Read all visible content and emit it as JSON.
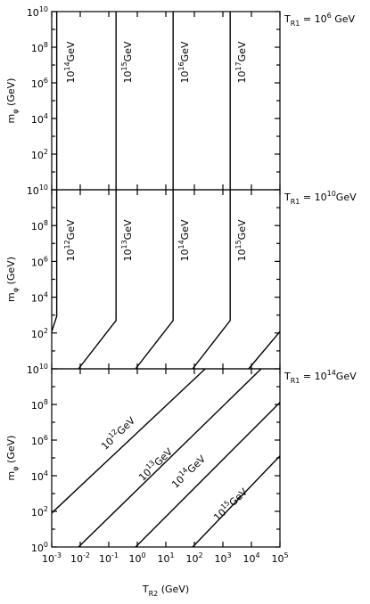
{
  "chart_data": [
    {
      "type": "line",
      "title": "T_{R1} = 10^{6} GeV",
      "ylabel": "m_{φ} (GeV)",
      "xscale": "log",
      "yscale": "log",
      "xlim": [
        0.001,
        100000
      ],
      "ylim": [
        1,
        10000000000
      ],
      "xtick_marks": [
        0.001,
        0.01,
        0.1,
        1,
        10,
        100,
        1000,
        10000,
        100000
      ],
      "yticks": [
        {
          "value": 100,
          "label": "10^{2}"
        },
        {
          "value": 10000,
          "label": "10^{4}"
        },
        {
          "value": 1000000,
          "label": "10^{6}"
        },
        {
          "value": 100000000,
          "label": "10^{8}"
        },
        {
          "value": 10000000000,
          "label": "10^{10}"
        }
      ],
      "ytick_marks": [
        10,
        1000,
        100000,
        10000000,
        1000000000
      ],
      "series": [
        {
          "name": "10^{14}GeV",
          "color": "#000000",
          "x": [
            0.0015,
            0.0015
          ],
          "y": [
            1,
            10000000000
          ]
        },
        {
          "name": "10^{15}GeV",
          "color": "#000000",
          "x": [
            0.18,
            0.18
          ],
          "y": [
            1,
            10000000000
          ]
        },
        {
          "name": "10^{16}GeV",
          "color": "#000000",
          "x": [
            18,
            18
          ],
          "y": [
            1,
            10000000000
          ]
        },
        {
          "name": "10^{17}GeV",
          "color": "#000000",
          "x": [
            1800,
            1800
          ],
          "y": [
            1,
            10000000000
          ]
        }
      ]
    },
    {
      "type": "line",
      "title": "T_{R1} = 10^{10}GeV",
      "ylabel": "m_{φ} (GeV)",
      "xscale": "log",
      "yscale": "log",
      "xlim": [
        0.001,
        100000
      ],
      "ylim": [
        1,
        10000000000
      ],
      "xtick_marks": [
        0.001,
        0.01,
        0.1,
        1,
        10,
        100,
        1000,
        10000,
        100000
      ],
      "yticks": [
        {
          "value": 100,
          "label": "10^{2}"
        },
        {
          "value": 10000,
          "label": "10^{4}"
        },
        {
          "value": 1000000,
          "label": "10^{6}"
        },
        {
          "value": 100000000,
          "label": "10^{8}"
        },
        {
          "value": 10000000000,
          "label": "10^{10}"
        }
      ],
      "ytick_marks": [
        10,
        1000,
        100000,
        10000000,
        1000000000
      ],
      "series": [
        {
          "name": "10^{12}GeV",
          "color": "#000000",
          "x": [
            0.0015,
            0.0015,
            0.001
          ],
          "y": [
            10000000000,
            870,
            120
          ]
        },
        {
          "name": "10^{13}GeV",
          "color": "#000000",
          "x": [
            0.18,
            0.18,
            0.0087
          ],
          "y": [
            10000000000,
            500,
            1
          ]
        },
        {
          "name": "10^{14}GeV",
          "color": "#000000",
          "x": [
            18,
            18,
            0.87
          ],
          "y": [
            10000000000,
            500,
            1
          ]
        },
        {
          "name": "10^{15}GeV",
          "color": "#000000",
          "x": [
            1800,
            1800,
            87
          ],
          "y": [
            10000000000,
            500,
            1
          ]
        },
        {
          "color": "#000000",
          "x": [
            8000,
            100000
          ],
          "y": [
            1,
            120
          ]
        }
      ]
    },
    {
      "type": "line",
      "title": "T_{R1} = 10^{14}GeV",
      "ylabel": "m_{φ} (GeV)",
      "xlabel": "T_{R2} (GeV)",
      "xscale": "log",
      "yscale": "log",
      "xlim": [
        0.001,
        100000
      ],
      "ylim": [
        1,
        10000000000
      ],
      "xticks": [
        {
          "value": 0.001,
          "label": "10^{-3}"
        },
        {
          "value": 0.01,
          "label": "10^{-2}"
        },
        {
          "value": 0.1,
          "label": "10^{-1}"
        },
        {
          "value": 1,
          "label": "10^{0}"
        },
        {
          "value": 10,
          "label": "10^{1}"
        },
        {
          "value": 100,
          "label": "10^{2}"
        },
        {
          "value": 1000,
          "label": "10^{3}"
        },
        {
          "value": 10000,
          "label": "10^{4}"
        },
        {
          "value": 100000,
          "label": "10^{5}"
        }
      ],
      "yticks": [
        {
          "value": 1,
          "label": "10^{0}"
        },
        {
          "value": 100,
          "label": "10^{2}"
        },
        {
          "value": 10000,
          "label": "10^{4}"
        },
        {
          "value": 1000000,
          "label": "10^{6}"
        },
        {
          "value": 100000000,
          "label": "10^{8}"
        },
        {
          "value": 10000000000,
          "label": "10^{10}"
        }
      ],
      "ytick_marks": [
        10,
        1000,
        100000,
        10000000,
        1000000000
      ],
      "series": [
        {
          "name": "10^{12}GeV",
          "color": "#000000",
          "x": [
            0.001,
            240
          ],
          "y": [
            80,
            10000000000
          ]
        },
        {
          "name": "10^{13}GeV",
          "color": "#000000",
          "x": [
            0.0087,
            22000
          ],
          "y": [
            1,
            10000000000
          ]
        },
        {
          "name": "10^{14}GeV",
          "color": "#000000",
          "x": [
            0.87,
            100000
          ],
          "y": [
            1,
            130000000
          ]
        },
        {
          "name": "10^{15}GeV",
          "color": "#000000",
          "x": [
            87,
            100000
          ],
          "y": [
            1,
            130000
          ]
        }
      ]
    }
  ]
}
